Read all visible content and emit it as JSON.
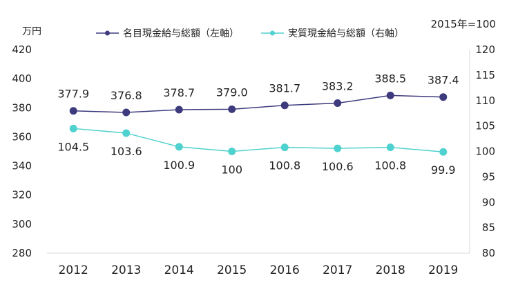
{
  "chart_data": {
    "type": "line",
    "left_axis_unit": "万円",
    "right_axis_note": "2015年=100",
    "categories": [
      "2012",
      "2013",
      "2014",
      "2015",
      "2016",
      "2017",
      "2018",
      "2019"
    ],
    "y_left": {
      "min": 280,
      "max": 420,
      "step": 20,
      "ticks": [
        "280",
        "300",
        "320",
        "340",
        "360",
        "380",
        "400",
        "420"
      ]
    },
    "y_right": {
      "min": 80,
      "max": 120,
      "step": 5,
      "ticks": [
        "80",
        "85",
        "90",
        "95",
        "100",
        "105",
        "110",
        "115",
        "120"
      ]
    },
    "grid": false,
    "legend_position": "top",
    "series": [
      {
        "name": "名目現金給与総額（左軸）",
        "axis": "left",
        "color": "#3d3a7e",
        "marker": "circle",
        "values": [
          377.9,
          376.8,
          378.7,
          379.0,
          381.7,
          383.2,
          388.5,
          387.4
        ],
        "labels": [
          "377.9",
          "376.8",
          "378.7",
          "379.0",
          "381.7",
          "383.2",
          "388.5",
          "387.4"
        ]
      },
      {
        "name": "実質現金給与総額（右軸）",
        "axis": "right",
        "color": "#4fd1cf",
        "marker": "circle",
        "values": [
          104.5,
          103.6,
          100.9,
          100,
          100.8,
          100.6,
          100.8,
          99.9
        ],
        "labels": [
          "104.5",
          "103.6",
          "100.9",
          "100",
          "100.8",
          "100.6",
          "100.8",
          "99.9"
        ]
      }
    ]
  }
}
